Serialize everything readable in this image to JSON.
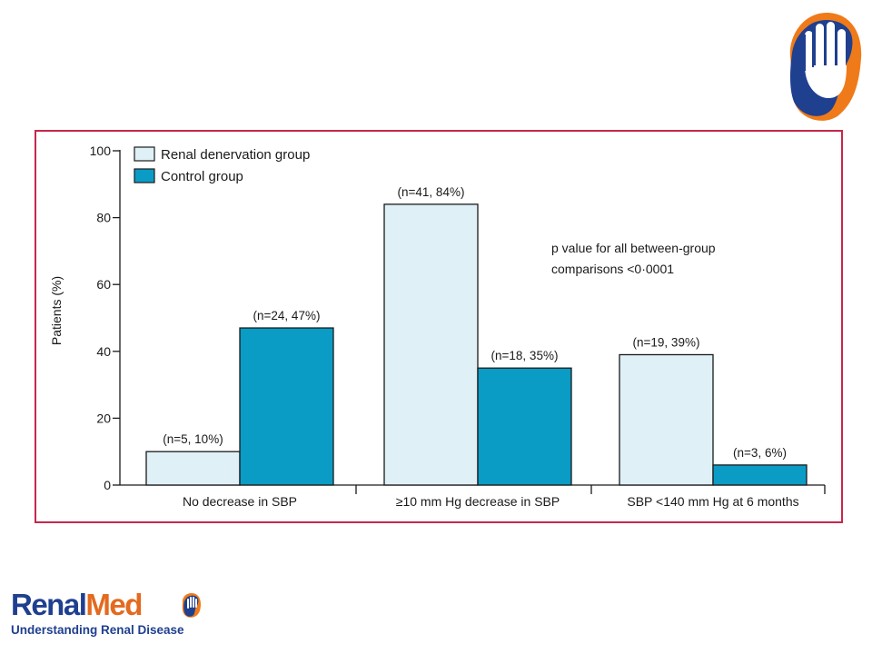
{
  "branding": {
    "name_part1": "Renal",
    "name_part2": "Med",
    "tagline": "Understanding Renal Disease",
    "colors": {
      "navy": "#1f3f8f",
      "orange": "#e36a1e"
    },
    "icon": "hand-in-kidney-logo"
  },
  "chart_data": {
    "type": "bar",
    "title": "",
    "xlabel": "",
    "ylabel": "Patients (%)",
    "ylim": [
      0,
      100
    ],
    "yticks": [
      0,
      20,
      40,
      60,
      80,
      100
    ],
    "grid": false,
    "legend_position": "top-left",
    "categories": [
      "No decrease in SBP",
      "≥10 mm Hg decrease in SBP",
      "SBP <140 mm Hg at 6 months"
    ],
    "series": [
      {
        "name": "Renal denervation group",
        "color": "#dff0f7",
        "values": [
          10,
          84,
          39
        ],
        "labels": [
          "(n=5, 10%)",
          "(n=41, 84%)",
          "(n=19, 39%)"
        ]
      },
      {
        "name": "Control group",
        "color": "#0a9cc4",
        "values": [
          47,
          35,
          6
        ],
        "labels": [
          "(n=24, 47%)",
          "(n=18, 35%)",
          "(n=3, 6%)"
        ]
      }
    ],
    "annotation": [
      "p value for all between-group",
      "comparisons <0·0001"
    ]
  }
}
